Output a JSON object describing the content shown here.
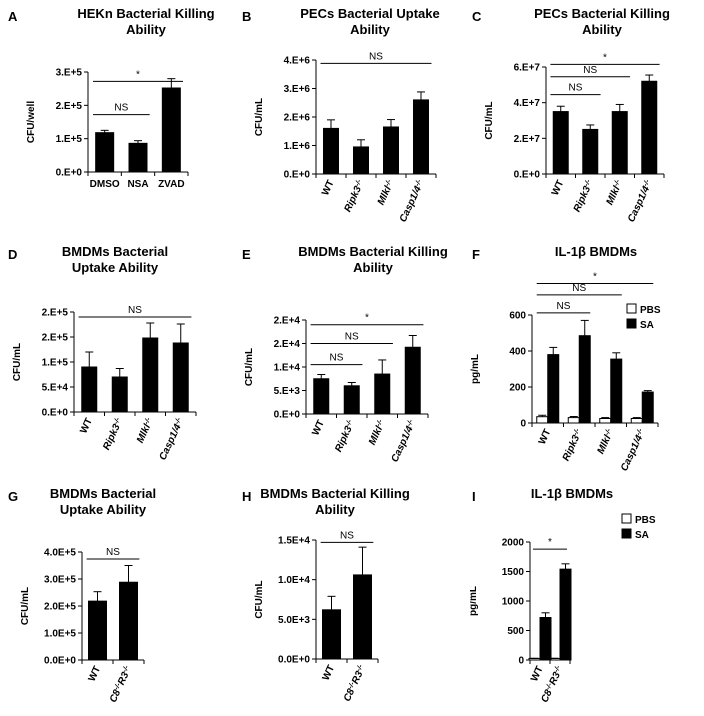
{
  "chart_data": [
    {
      "id": "A",
      "letter": "A",
      "type": "bar",
      "title": "HEKn Bacterial Killing Ability",
      "ylabel": "CFU/well",
      "ylim": [
        0,
        300000
      ],
      "yticks": [
        0,
        100000,
        200000,
        300000
      ],
      "ytick_labels": [
        "0.E+0",
        "1.E+5",
        "2.E+5",
        "3.E+5"
      ],
      "categories": [
        "DMSO",
        "NSA",
        "ZVAD"
      ],
      "rotated": false,
      "series": [
        {
          "name": "",
          "fill": "#000000",
          "values": [
            118000,
            86000,
            252000
          ],
          "errors": [
            7000,
            8000,
            28000
          ]
        }
      ],
      "annotations": [
        {
          "text": "*",
          "from": 0,
          "to": 2,
          "y": 272000
        },
        {
          "text": "NS",
          "from": 0,
          "to": 1,
          "y": 172000
        }
      ]
    },
    {
      "id": "B",
      "letter": "B",
      "type": "bar",
      "title": "PECs Bacterial Uptake Ability",
      "ylabel": "CFU/mL",
      "ylim": [
        0,
        4000000
      ],
      "yticks": [
        0,
        1000000,
        2000000,
        3000000,
        4000000
      ],
      "ytick_labels": [
        "0.E+0",
        "1.E+6",
        "2.E+6",
        "3.E+6",
        "4.E+6"
      ],
      "categories": [
        "WT",
        "Ripk3-/-",
        "Mlkl-/-",
        "Casp1/4-/-"
      ],
      "rotated": true,
      "series": [
        {
          "name": "",
          "fill": "#000000",
          "values": [
            1600000,
            950000,
            1650000,
            2600000
          ],
          "errors": [
            300000,
            250000,
            260000,
            280000
          ]
        }
      ],
      "annotations": [
        {
          "text": "NS",
          "from": 0,
          "to": 3,
          "y": 3880000
        }
      ]
    },
    {
      "id": "C",
      "letter": "C",
      "type": "bar",
      "title": "PECs Bacterial Killing Ability",
      "ylabel": "CFU/mL",
      "ylim": [
        0,
        60000000
      ],
      "yticks": [
        0,
        20000000,
        40000000,
        60000000
      ],
      "ytick_labels": [
        "0.E+0",
        "2.E+7",
        "4.E+7",
        "6.E+7"
      ],
      "categories": [
        "WT",
        "Ripk3-/-",
        "Mlkl-/-",
        "Casp1/4-/-"
      ],
      "rotated": true,
      "series": [
        {
          "name": "",
          "fill": "#000000",
          "values": [
            35000000,
            25000000,
            35000000,
            52000000
          ],
          "errors": [
            3000000,
            2500000,
            4000000,
            3500000
          ]
        }
      ],
      "annotations": [
        {
          "text": "*",
          "from": 0,
          "to": 3,
          "y": 61500000
        },
        {
          "text": "NS",
          "from": 0,
          "to": 2,
          "y": 54500000
        },
        {
          "text": "NS",
          "from": 0,
          "to": 1,
          "y": 44500000
        }
      ]
    },
    {
      "id": "D",
      "letter": "D",
      "type": "bar",
      "title": "BMDMs Bacterial Uptake Ability",
      "ylabel": "CFU/mL",
      "ylim": [
        0,
        200000
      ],
      "yticks": [
        0,
        50000,
        100000,
        150000,
        200000
      ],
      "ytick_labels": [
        "0.E+0",
        "5.E+4",
        "1.E+5",
        "2.E+5",
        "2.E+5"
      ],
      "categories": [
        "WT",
        "Ripk3-/-",
        "Mlkl-/-",
        "Casp1/4-/-"
      ],
      "rotated": true,
      "series": [
        {
          "name": "",
          "fill": "#000000",
          "values": [
            90000,
            70000,
            148000,
            138000
          ],
          "errors": [
            30000,
            17000,
            30000,
            38000
          ]
        }
      ],
      "annotations": [
        {
          "text": "NS",
          "from": 0,
          "to": 3,
          "y": 190000
        }
      ]
    },
    {
      "id": "E",
      "letter": "E",
      "type": "bar",
      "title": "BMDMs Bacterial Killing Ability",
      "ylabel": "CFU/mL",
      "ylim": [
        0,
        20000
      ],
      "yticks": [
        0,
        5000,
        10000,
        15000,
        20000
      ],
      "ytick_labels": [
        "0.E+0",
        "5.E+3",
        "1.E+4",
        "2.E+4",
        "2.E+4"
      ],
      "categories": [
        "WT",
        "Ripk3-/-",
        "Mlkl-/-",
        "Casp1/4-/-"
      ],
      "rotated": true,
      "series": [
        {
          "name": "",
          "fill": "#000000",
          "values": [
            7500,
            6000,
            8500,
            14200
          ],
          "errors": [
            900,
            700,
            3000,
            2500
          ]
        }
      ],
      "annotations": [
        {
          "text": "*",
          "from": 0,
          "to": 3,
          "y": 19000
        },
        {
          "text": "NS",
          "from": 0,
          "to": 2,
          "y": 15000
        },
        {
          "text": "NS",
          "from": 0,
          "to": 1,
          "y": 10500
        }
      ]
    },
    {
      "id": "F",
      "letter": "F",
      "type": "bar",
      "title": "IL-1β BMDMs",
      "ylabel": "pg/mL",
      "ylim": [
        0,
        600
      ],
      "yticks": [
        0,
        200,
        400,
        600
      ],
      "ytick_labels": [
        "0",
        "200",
        "400",
        "600"
      ],
      "categories": [
        "WT",
        "Ripk3-/-",
        "Mlkl-/-",
        "Casp1/4-/-"
      ],
      "rotated": true,
      "series": [
        {
          "name": "PBS",
          "fill": "#ffffff",
          "values": [
            35,
            30,
            25,
            25
          ],
          "errors": [
            8,
            6,
            5,
            5
          ]
        },
        {
          "name": "SA",
          "fill": "#000000",
          "values": [
            380,
            485,
            355,
            172
          ],
          "errors": [
            40,
            85,
            35,
            8
          ]
        }
      ],
      "legend": "top-right",
      "annotations": [
        {
          "text": "*",
          "from": 0,
          "to": 3,
          "y": 775
        },
        {
          "text": "NS",
          "from": 0,
          "to": 2,
          "y": 712
        },
        {
          "text": "NS",
          "from": 0,
          "to": 1,
          "y": 612
        }
      ]
    },
    {
      "id": "G",
      "letter": "G",
      "type": "bar",
      "title": "BMDMs Bacterial Uptake Ability",
      "ylabel": "CFU/mL",
      "ylim": [
        0,
        400000
      ],
      "yticks": [
        0,
        100000,
        200000,
        300000,
        400000
      ],
      "ytick_labels": [
        "0.0E+0",
        "1.0E+5",
        "2.0E+5",
        "3.0E+5",
        "4.0E+5"
      ],
      "categories": [
        "WT",
        "C8-/-R3-/-"
      ],
      "rotated": true,
      "series": [
        {
          "name": "",
          "fill": "#000000",
          "values": [
            218000,
            288000
          ],
          "errors": [
            35000,
            62000
          ]
        }
      ],
      "annotations": [
        {
          "text": "NS",
          "from": 0,
          "to": 1,
          "y": 374000
        }
      ]
    },
    {
      "id": "H",
      "letter": "H",
      "type": "bar",
      "title": "BMDMs Bacterial Killing Ability",
      "ylabel": "CFU/mL",
      "ylim": [
        0,
        15000
      ],
      "yticks": [
        0,
        5000,
        10000,
        15000
      ],
      "ytick_labels": [
        "0.0E+0",
        "5.0E+3",
        "1.0E+4",
        "1.5E+4"
      ],
      "categories": [
        "WT",
        "C8-/-R3-/-"
      ],
      "rotated": true,
      "series": [
        {
          "name": "",
          "fill": "#000000",
          "values": [
            6200,
            10600
          ],
          "errors": [
            1700,
            3500
          ]
        }
      ],
      "annotations": [
        {
          "text": "NS",
          "from": 0,
          "to": 1,
          "y": 14700
        }
      ]
    },
    {
      "id": "I",
      "letter": "I",
      "type": "bar",
      "title": "IL-1β BMDMs",
      "ylabel": "pg/mL",
      "ylim": [
        0,
        2000
      ],
      "yticks": [
        0,
        500,
        1000,
        1500,
        2000
      ],
      "ytick_labels": [
        "0",
        "500",
        "1000",
        "1500",
        "2000"
      ],
      "categories": [
        "WT",
        "C8-/-R3-/-"
      ],
      "rotated": true,
      "series": [
        {
          "name": "PBS",
          "fill": "#ffffff",
          "values": [
            25,
            25
          ],
          "errors": [
            5,
            5
          ]
        },
        {
          "name": "SA",
          "fill": "#000000",
          "values": [
            720,
            1540
          ],
          "errors": [
            80,
            90
          ]
        }
      ],
      "legend": "top-right",
      "annotations": [
        {
          "text": "*",
          "from": 0,
          "to": 1,
          "y": 1880
        }
      ]
    }
  ]
}
